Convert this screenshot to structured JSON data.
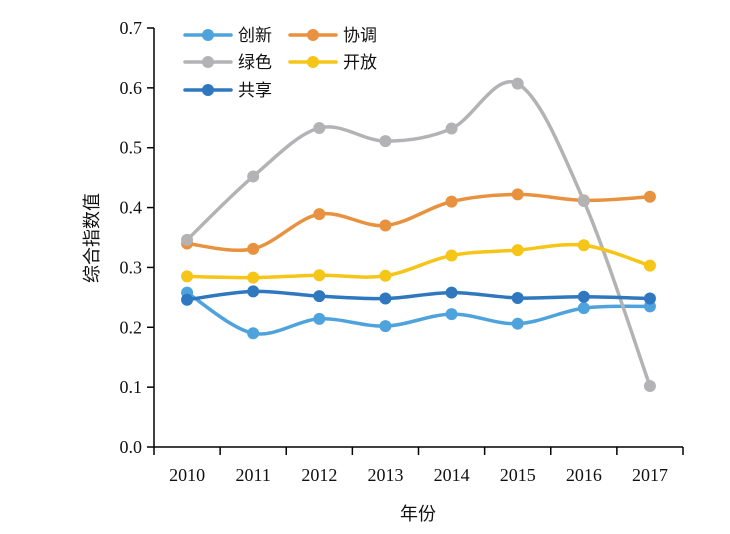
{
  "chart_data": {
    "type": "line",
    "title": "",
    "xlabel": "年份",
    "ylabel": "综合指数值",
    "ylim": [
      0,
      0.7
    ],
    "yticks": [
      "0.0",
      "0.1",
      "0.2",
      "0.3",
      "0.4",
      "0.5",
      "0.6",
      "0.7"
    ],
    "categories": [
      "2010",
      "2011",
      "2012",
      "2013",
      "2014",
      "2015",
      "2016",
      "2017"
    ],
    "grid": false,
    "legend_position": "top-left",
    "series": [
      {
        "name": "创新",
        "color": "#4fa3dc",
        "values": [
          0.258,
          0.19,
          0.214,
          0.202,
          0.222,
          0.206,
          0.232,
          0.235
        ]
      },
      {
        "name": "协调",
        "color": "#e8923f",
        "values": [
          0.34,
          0.331,
          0.389,
          0.37,
          0.41,
          0.422,
          0.412,
          0.418
        ]
      },
      {
        "name": "绿色",
        "color": "#b3b3b6",
        "values": [
          0.346,
          0.452,
          0.533,
          0.511,
          0.532,
          0.607,
          0.411,
          0.102
        ]
      },
      {
        "name": "开放",
        "color": "#f5c518",
        "values": [
          0.285,
          0.283,
          0.287,
          0.286,
          0.32,
          0.329,
          0.337,
          0.303
        ]
      },
      {
        "name": "共享",
        "color": "#2f78bf",
        "values": [
          0.246,
          0.26,
          0.252,
          0.248,
          0.258,
          0.249,
          0.251,
          0.248
        ]
      }
    ]
  }
}
